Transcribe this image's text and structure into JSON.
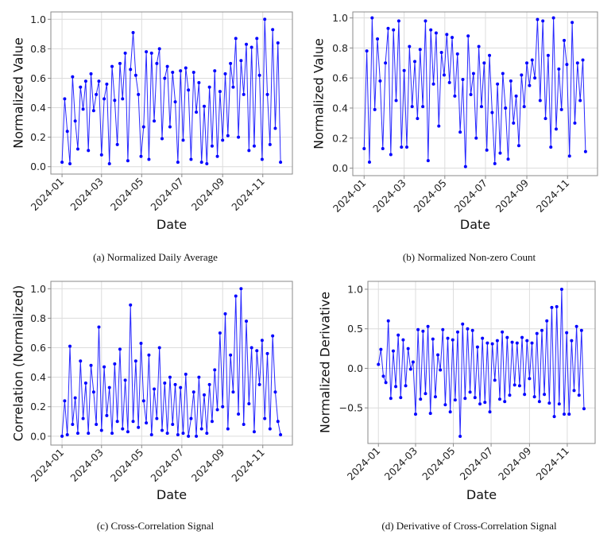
{
  "chart_data": [
    {
      "id": "a",
      "type": "line",
      "caption": "(a) Normalized Daily Average",
      "xlabel": "Date",
      "ylabel": "Normalized Value",
      "xlim": [
        "2023-12-15",
        "2024-12-16"
      ],
      "ylim": [
        -0.05,
        1.05
      ],
      "yticks": [
        0.0,
        0.2,
        0.4,
        0.6,
        0.8,
        1.0
      ],
      "ytick_labels": [
        "0.0",
        "0.2",
        "0.4",
        "0.6",
        "0.8",
        "1.0"
      ],
      "grid": true,
      "marker": "circle",
      "values": [
        0.03,
        0.46,
        0.24,
        0.02,
        0.61,
        0.31,
        0.12,
        0.54,
        0.39,
        0.58,
        0.11,
        0.63,
        0.38,
        0.49,
        0.58,
        0.08,
        0.46,
        0.56,
        0.02,
        0.68,
        0.45,
        0.15,
        0.7,
        0.46,
        0.77,
        0.04,
        0.66,
        0.91,
        0.62,
        0.49,
        0.07,
        0.27,
        0.78,
        0.05,
        0.77,
        0.31,
        0.7,
        0.8,
        0.19,
        0.6,
        0.68,
        0.27,
        0.64,
        0.44,
        0.03,
        0.65,
        0.18,
        0.67,
        0.52,
        0.05,
        0.64,
        0.37,
        0.57,
        0.03,
        0.41,
        0.02,
        0.54,
        0.14,
        0.65,
        0.07,
        0.51,
        0.18,
        0.63,
        0.21,
        0.7,
        0.54,
        0.87,
        0.2,
        0.72,
        0.49,
        0.83,
        0.11,
        0.81,
        0.14,
        0.87,
        0.62,
        0.05,
        1.0,
        0.49,
        0.15,
        0.93,
        0.26,
        0.84,
        0.03
      ]
    },
    {
      "id": "b",
      "type": "line",
      "caption": "(b) Normalized Non-zero Count",
      "xlabel": "Date",
      "ylabel": "Normalized Value",
      "xlim": [
        "2023-12-15",
        "2024-12-16"
      ],
      "ylim": [
        -0.05,
        1.04
      ],
      "yticks": [
        0.0,
        0.2,
        0.4,
        0.6,
        0.8,
        1.0
      ],
      "ytick_labels": [
        "0.0",
        "0.2",
        "0.4",
        "0.6",
        "0.8",
        "1.0"
      ],
      "grid": true,
      "marker": "circle",
      "values": [
        0.13,
        0.78,
        0.04,
        1.0,
        0.39,
        0.86,
        0.58,
        0.13,
        0.7,
        0.93,
        0.09,
        0.92,
        0.45,
        0.98,
        0.14,
        0.65,
        0.14,
        0.81,
        0.41,
        0.71,
        0.33,
        0.79,
        0.41,
        0.98,
        0.05,
        0.92,
        0.56,
        0.9,
        0.28,
        0.77,
        0.62,
        0.89,
        0.57,
        0.87,
        0.48,
        0.76,
        0.24,
        0.59,
        0.01,
        0.88,
        0.49,
        0.63,
        0.2,
        0.81,
        0.41,
        0.7,
        0.12,
        0.75,
        0.37,
        0.03,
        0.56,
        0.1,
        0.63,
        0.4,
        0.06,
        0.58,
        0.3,
        0.48,
        0.15,
        0.62,
        0.41,
        0.7,
        0.55,
        0.72,
        0.6,
        0.99,
        0.45,
        0.98,
        0.33,
        0.75,
        0.14,
        1.0,
        0.26,
        0.66,
        0.39,
        0.85,
        0.69,
        0.08,
        0.97,
        0.3,
        0.7,
        0.45,
        0.72,
        0.11
      ]
    },
    {
      "id": "c",
      "type": "line",
      "caption": "(c) Cross-Correlation Signal",
      "xlabel": "Date",
      "ylabel": "Correlation (Normalized)",
      "xlim": [
        "2023-12-15",
        "2024-12-16"
      ],
      "ylim": [
        -0.06,
        1.05
      ],
      "yticks": [
        0.0,
        0.2,
        0.4,
        0.6,
        0.8,
        1.0
      ],
      "ytick_labels": [
        "0.0",
        "0.2",
        "0.4",
        "0.6",
        "0.8",
        "1.0"
      ],
      "grid": true,
      "marker": "circle",
      "values": [
        0.0,
        0.24,
        0.01,
        0.61,
        0.08,
        0.26,
        0.02,
        0.51,
        0.12,
        0.36,
        0.02,
        0.48,
        0.3,
        0.08,
        0.74,
        0.04,
        0.47,
        0.14,
        0.33,
        0.02,
        0.49,
        0.1,
        0.59,
        0.05,
        0.38,
        0.03,
        0.89,
        0.1,
        0.51,
        0.06,
        0.63,
        0.24,
        0.09,
        0.55,
        0.01,
        0.32,
        0.12,
        0.6,
        0.04,
        0.36,
        0.02,
        0.4,
        0.08,
        0.35,
        0.01,
        0.33,
        0.02,
        0.42,
        0.0,
        0.12,
        0.3,
        0.0,
        0.4,
        0.05,
        0.28,
        0.02,
        0.35,
        0.1,
        0.45,
        0.18,
        0.7,
        0.2,
        0.83,
        0.05,
        0.55,
        0.3,
        0.95,
        0.15,
        1.0,
        0.08,
        0.78,
        0.22,
        0.6,
        0.03,
        0.58,
        0.35,
        0.65,
        0.12,
        0.56,
        0.05,
        0.68,
        0.3,
        0.1,
        0.01
      ]
    },
    {
      "id": "d",
      "type": "line",
      "caption": "(d) Derivative of Cross-Correlation Signal",
      "xlabel": "Date",
      "ylabel": "Normalized Derivative",
      "xlim": [
        "2023-12-15",
        "2024-12-16"
      ],
      "ylim": [
        -0.95,
        1.1
      ],
      "yticks": [
        -0.5,
        0.0,
        0.5,
        1.0
      ],
      "ytick_labels": [
        "−0.5",
        "0.0",
        "0.5",
        "1.0"
      ],
      "grid": true,
      "marker": "circle",
      "values": [
        0.05,
        0.24,
        -0.1,
        -0.18,
        0.6,
        -0.38,
        0.22,
        -0.23,
        0.42,
        -0.37,
        0.36,
        -0.22,
        0.25,
        -0.01,
        0.08,
        -0.58,
        0.49,
        -0.39,
        0.47,
        -0.32,
        0.53,
        -0.57,
        0.37,
        -0.36,
        0.17,
        -0.02,
        0.49,
        -0.46,
        0.38,
        -0.55,
        0.36,
        -0.4,
        0.46,
        -0.86,
        0.56,
        -0.38,
        0.5,
        -0.3,
        0.48,
        -0.37,
        0.27,
        -0.45,
        0.38,
        -0.43,
        0.32,
        -0.55,
        0.31,
        -0.15,
        0.35,
        -0.39,
        0.46,
        -0.42,
        0.39,
        -0.34,
        0.33,
        -0.21,
        0.32,
        -0.22,
        0.39,
        -0.33,
        0.35,
        -0.13,
        0.32,
        -0.36,
        0.44,
        -0.42,
        0.48,
        -0.33,
        0.6,
        -0.44,
        0.77,
        -0.61,
        0.78,
        -0.45,
        1.0,
        -0.58,
        0.45,
        -0.58,
        0.35,
        -0.28,
        0.53,
        -0.34,
        0.48,
        -0.51
      ]
    }
  ],
  "shared": {
    "x": [
      "2024-01-01",
      "2024-01-05",
      "2024-01-09",
      "2024-01-13",
      "2024-01-17",
      "2024-01-21",
      "2024-01-25",
      "2024-01-29",
      "2024-02-02",
      "2024-02-06",
      "2024-02-10",
      "2024-02-14",
      "2024-02-18",
      "2024-02-22",
      "2024-02-26",
      "2024-03-01",
      "2024-03-05",
      "2024-03-09",
      "2024-03-13",
      "2024-03-17",
      "2024-03-21",
      "2024-03-25",
      "2024-03-29",
      "2024-04-02",
      "2024-04-06",
      "2024-04-10",
      "2024-04-14",
      "2024-04-18",
      "2024-04-22",
      "2024-04-26",
      "2024-04-30",
      "2024-05-04",
      "2024-05-08",
      "2024-05-12",
      "2024-05-16",
      "2024-05-20",
      "2024-05-24",
      "2024-05-28",
      "2024-06-01",
      "2024-06-05",
      "2024-06-09",
      "2024-06-13",
      "2024-06-17",
      "2024-06-21",
      "2024-06-25",
      "2024-06-29",
      "2024-07-03",
      "2024-07-07",
      "2024-07-11",
      "2024-07-15",
      "2024-07-19",
      "2024-07-23",
      "2024-07-27",
      "2024-07-31",
      "2024-08-04",
      "2024-08-08",
      "2024-08-12",
      "2024-08-16",
      "2024-08-20",
      "2024-08-24",
      "2024-08-28",
      "2024-09-01",
      "2024-09-05",
      "2024-09-09",
      "2024-09-13",
      "2024-09-17",
      "2024-09-21",
      "2024-09-25",
      "2024-09-29",
      "2024-10-03",
      "2024-10-07",
      "2024-10-11",
      "2024-10-15",
      "2024-10-19",
      "2024-10-23",
      "2024-10-27",
      "2024-10-31",
      "2024-11-04",
      "2024-11-08",
      "2024-11-12",
      "2024-11-16",
      "2024-11-20",
      "2024-11-24",
      "2024-11-28"
    ],
    "xticks": [
      "2024-01-01",
      "2024-03-01",
      "2024-05-01",
      "2024-07-01",
      "2024-09-01",
      "2024-11-01"
    ],
    "xtick_labels": [
      "2024-01",
      "2024-03",
      "2024-05",
      "2024-07",
      "2024-09",
      "2024-11"
    ],
    "colors": {
      "series": "#0000ff",
      "grid": "#dcdcdc",
      "frame": "#8a8a8a"
    }
  }
}
